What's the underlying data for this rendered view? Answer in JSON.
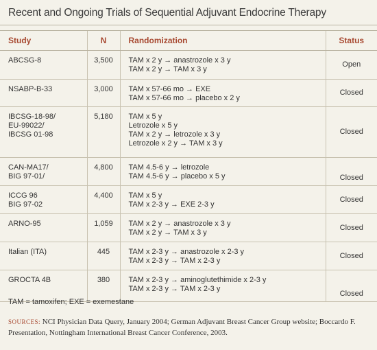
{
  "header": {
    "title": "Recent and Ongoing Trials of Sequential Adjuvant Endocrine Therapy"
  },
  "table": {
    "columns": [
      "Study",
      "N",
      "Randomization",
      "Status"
    ],
    "rows": [
      {
        "study": [
          "ABCSG-8"
        ],
        "n": "3,500",
        "randomization": [
          "TAM x 2 y → anastrozole x 3 y",
          "TAM x 2 y → TAM x 3 y"
        ],
        "status": "Open"
      },
      {
        "study": [
          "NSABP-B-33"
        ],
        "n": "3,000",
        "randomization": [
          "TAM x 57-66 mo → EXE",
          "TAM x 57-66 mo → placebo x 2 y"
        ],
        "status": "Closed"
      },
      {
        "study": [
          "IBCSG-18-98/",
          "EU-99022/",
          "IBCSG 01-98"
        ],
        "n": "5,180",
        "randomization": [
          "TAM x 5 y",
          "Letrozole x 5 y",
          "TAM x 2 y → letrozole x 3 y",
          "Letrozole x 2 y → TAM x 3 y"
        ],
        "status": "Closed"
      },
      {
        "study": [
          "CAN-MA17/",
          "BIG 97-01/"
        ],
        "n": "4,800",
        "randomization": [
          "TAM 4.5-6 y → letrozole",
          "TAM 4.5-6 y → placebo x 5 y"
        ],
        "status": "Closed"
      },
      {
        "study": [
          "ICCG 96",
          "BIG 97-02"
        ],
        "n": "4,400",
        "randomization": [
          "TAM x 5 y",
          "TAM x 2-3 y → EXE 2-3 y"
        ],
        "status": "Closed"
      },
      {
        "study": [
          "ARNO-95"
        ],
        "n": "1,059",
        "randomization": [
          "TAM x 2 y → anastrozole x 3 y",
          "TAM x 2 y → TAM x 3 y"
        ],
        "status": "Closed"
      },
      {
        "study": [
          "Italian (ITA)"
        ],
        "n": "445",
        "randomization": [
          "TAM x 2-3 y → anastrozole x 2-3 y",
          "TAM x 2-3 y → TAM x 2-3 y"
        ],
        "status": "Closed"
      },
      {
        "study": [
          "GROCTA 4B"
        ],
        "n": "380",
        "randomization": [
          "TAM x 2-3 y → aminoglutethimide x 2-3 y",
          "TAM x 2-3 y → TAM x 2-3 y"
        ],
        "status": "Closed"
      }
    ]
  },
  "footnote": "TAM = tamoxifen; EXE = exemestane",
  "sources": {
    "label": "SOURCES:",
    "text": "NCI Physician Data Query, January 2004; German Adjuvant Breast Cancer Group website; Boccardo F. Presentation, Nottingham International Breast Cancer Conference, 2003."
  }
}
